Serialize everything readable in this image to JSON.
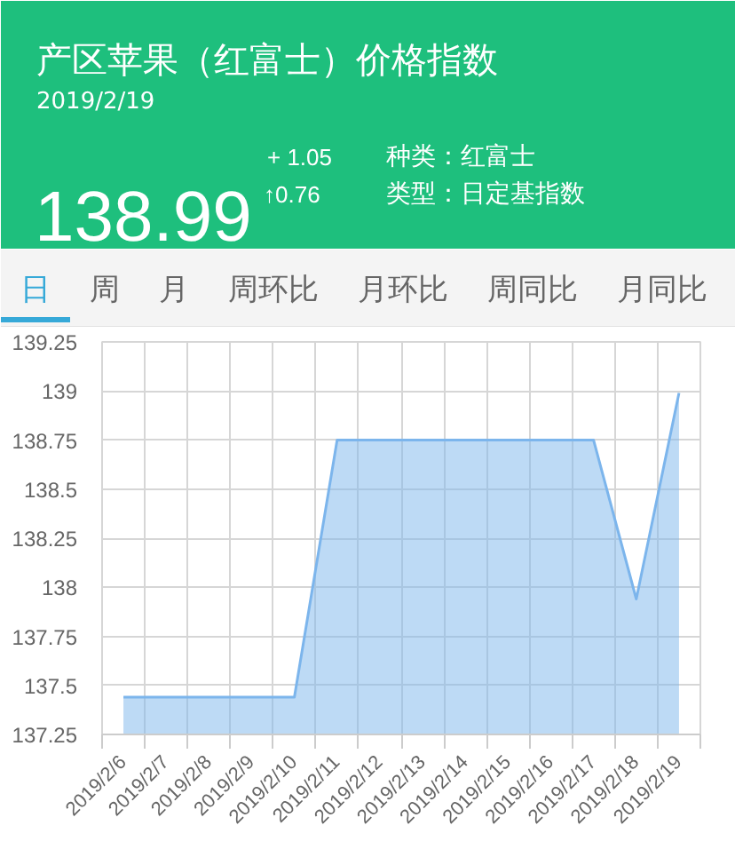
{
  "chart_data": [
    {
      "type": "other",
      "title": "产区苹果（红富士）价格指数",
      "subtitle": "2019/2/19",
      "annotations": [
        "138.99",
        "+ 1.05",
        "↑0.76",
        "种类：红富士",
        "类型：日定基指数"
      ]
    },
    {
      "type": "other",
      "annotations": [
        "日",
        "周",
        "月",
        "周环比",
        "月环比",
        "周同比",
        "月同比"
      ]
    },
    {
      "type": "area",
      "categories": [
        "2019/2/6",
        "2019/2/7",
        "2019/2/8",
        "2019/2/9",
        "2019/2/10",
        "2019/2/11",
        "2019/2/12",
        "2019/2/13",
        "2019/2/14",
        "2019/2/15",
        "2019/2/16",
        "2019/2/17",
        "2019/2/18",
        "2019/2/19"
      ],
      "values": [
        137.44,
        137.44,
        137.44,
        137.44,
        137.44,
        138.75,
        138.75,
        138.75,
        138.75,
        138.75,
        138.75,
        138.75,
        137.94,
        138.99
      ],
      "color": "#7cb5ec",
      "ylim": [
        137.25,
        139.25
      ],
      "yticks": [
        137.25,
        137.5,
        137.75,
        138,
        138.25,
        138.5,
        138.75,
        139,
        139.25
      ],
      "grid": true
    }
  ]
}
